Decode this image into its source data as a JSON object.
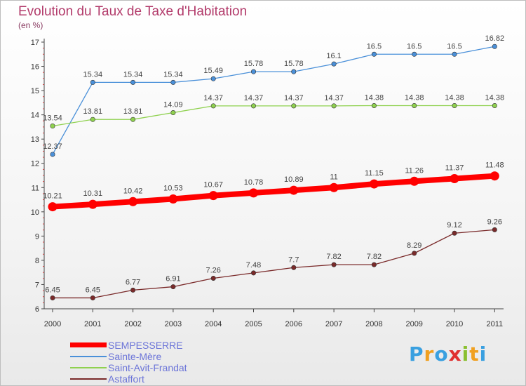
{
  "title": "Evolution du Taux de Taxe d'Habitation",
  "subtitle": "(en %)",
  "chart_data": {
    "type": "line",
    "x": [
      "2000",
      "2001",
      "2002",
      "2003",
      "2004",
      "2005",
      "2006",
      "2007",
      "2008",
      "2009",
      "2010",
      "2011"
    ],
    "ylim": [
      6,
      17
    ],
    "yticks": [
      "6",
      "7",
      "8",
      "9",
      "10",
      "11",
      "12",
      "13",
      "14",
      "15",
      "16",
      "17"
    ],
    "grid": false,
    "legend_position": "bottom-left",
    "series": [
      {
        "name": "SEMPESSERRE",
        "color": "#ff0000",
        "emphasis": true,
        "values": [
          10.21,
          10.31,
          10.42,
          10.53,
          10.67,
          10.78,
          10.89,
          11,
          11.15,
          11.26,
          11.37,
          11.48
        ],
        "labels": [
          "10.21",
          "10.31",
          "10.42",
          "10.53",
          "10.67",
          "10.78",
          "10.89",
          "11",
          "11.15",
          "11.26",
          "11.37",
          "11.48"
        ]
      },
      {
        "name": "Sainte-Mère",
        "color": "#4a90d9",
        "values": [
          12.37,
          15.34,
          15.34,
          15.34,
          15.49,
          15.78,
          15.78,
          16.1,
          16.5,
          16.5,
          16.5,
          16.82
        ],
        "labels": [
          "12.37",
          "15.34",
          "15.34",
          "15.34",
          "15.49",
          "15.78",
          "15.78",
          "16.1",
          "16.5",
          "16.5",
          "16.5",
          "16.82"
        ]
      },
      {
        "name": "Saint-Avit-Frandat",
        "color": "#8fd14f",
        "values": [
          13.54,
          13.81,
          13.81,
          14.09,
          14.37,
          14.37,
          14.37,
          14.37,
          14.38,
          14.38,
          14.38,
          14.38
        ],
        "labels": [
          "13.54",
          "13.81",
          "13.81",
          "14.09",
          "14.37",
          "14.37",
          "14.37",
          "14.37",
          "14.38",
          "14.38",
          "14.38",
          "14.38"
        ]
      },
      {
        "name": "Astaffort",
        "color": "#7a2a2a",
        "values": [
          6.45,
          6.45,
          6.77,
          6.91,
          7.26,
          7.48,
          7.7,
          7.82,
          7.82,
          8.29,
          9.12,
          9.26
        ],
        "labels": [
          "6.45",
          "6.45",
          "6.77",
          "6.91",
          "7.26",
          "7.48",
          "7.7",
          "7.82",
          "7.82",
          "8.29",
          "9.12",
          "9.26"
        ]
      }
    ]
  },
  "brand": {
    "letters": [
      "P",
      "r",
      "o",
      "x",
      "i",
      "t",
      "i"
    ],
    "colors": [
      "#3aa0e0",
      "#f0a020",
      "#3aa0e0",
      "#e03030",
      "#8ac030",
      "#f0a020",
      "#3aa0e0"
    ]
  }
}
